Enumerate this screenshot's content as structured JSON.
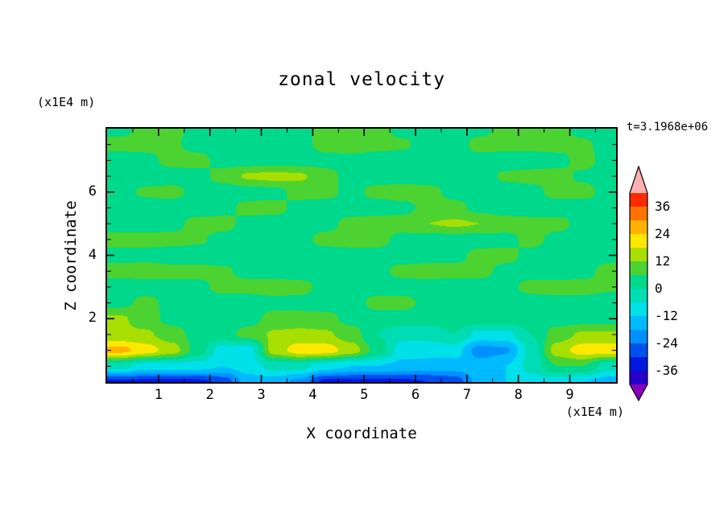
{
  "title": "zonal velocity",
  "annotations": {
    "time": "t=3.1968e+06"
  },
  "x_axis": {
    "label": "X coordinate",
    "units": "(x1E4 m)",
    "range": [
      0,
      9.9
    ],
    "major_ticks": [
      1,
      2,
      3,
      4,
      5,
      6,
      7,
      8,
      9
    ],
    "minor_step": 0.5
  },
  "z_axis": {
    "label": "Z coordinate",
    "units": "(x1E4 m)",
    "range": [
      0,
      8
    ],
    "major_ticks": [
      2,
      4,
      6
    ],
    "minor_step": 0.5
  },
  "colorbar": {
    "labels": [
      "36",
      "24",
      "12",
      "0",
      "-12",
      "-24",
      "-36"
    ]
  },
  "chart_data": {
    "type": "heatmap",
    "title": "zonal velocity",
    "xlabel": "X coordinate (x1E4 m)",
    "ylabel": "Z coordinate (x1E4 m)",
    "time_annotation": "t=3.1968e+06",
    "grid": false,
    "legend_position": "right-colorbar",
    "xlim": [
      0,
      9.9
    ],
    "ylim": [
      0,
      8
    ],
    "contour_levels": [
      -42,
      -36,
      -30,
      -24,
      -18,
      -12,
      -6,
      0,
      6,
      12,
      18,
      24,
      30,
      36,
      42
    ],
    "band_colors": [
      "#8800bb",
      "#2400c8",
      "#0018e0",
      "#0050f0",
      "#0090ff",
      "#00baff",
      "#00e0e8",
      "#00ddb4",
      "#00d98c",
      "#4cd331",
      "#a8de00",
      "#ffe800",
      "#ffb200",
      "#ff7300",
      "#ff2a00",
      "#ffb0b0"
    ],
    "colorbar_tick_values": [
      36,
      24,
      12,
      0,
      -12,
      -24,
      -36
    ],
    "x": [
      0.25,
      0.75,
      1.25,
      1.75,
      2.25,
      2.75,
      3.25,
      3.75,
      4.25,
      4.75,
      5.25,
      5.75,
      6.25,
      6.75,
      7.25,
      7.75,
      8.25,
      8.75,
      9.25,
      9.75
    ],
    "z": [
      8,
      7.5,
      7,
      6.5,
      6,
      5.5,
      5,
      4.5,
      4,
      3.5,
      3,
      2.5,
      2,
      1.5,
      1,
      0.5,
      0
    ],
    "values": [
      [
        4,
        8,
        8,
        4,
        3,
        3,
        3,
        4,
        8,
        8,
        8,
        4,
        3,
        3,
        4,
        8,
        8,
        8,
        4,
        3
      ],
      [
        8,
        8,
        7,
        4,
        3,
        3,
        3,
        4,
        8,
        9,
        8,
        7,
        3,
        3,
        8,
        8,
        8,
        8,
        7,
        4
      ],
      [
        3,
        4,
        8,
        8,
        4,
        3,
        3,
        3,
        4,
        4,
        3,
        3,
        3,
        4,
        4,
        3,
        3,
        4,
        8,
        4
      ],
      [
        3,
        3,
        3,
        4,
        8,
        13,
        14,
        13,
        8,
        4,
        3,
        3,
        3,
        3,
        3,
        7,
        8,
        8,
        5,
        3
      ],
      [
        4,
        7,
        8,
        4,
        3,
        3,
        4,
        8,
        8,
        4,
        8,
        9,
        8,
        4,
        3,
        3,
        4,
        8,
        8,
        4
      ],
      [
        3,
        3,
        3,
        3,
        4,
        8,
        8,
        4,
        3,
        3,
        3,
        4,
        8,
        8,
        4,
        3,
        3,
        3,
        3,
        3
      ],
      [
        3,
        3,
        4,
        8,
        8,
        4,
        3,
        3,
        4,
        8,
        9,
        9,
        12,
        13,
        12,
        9,
        8,
        8,
        4,
        3
      ],
      [
        8,
        8,
        8,
        7,
        4,
        3,
        3,
        4,
        8,
        8,
        8,
        4,
        3,
        3,
        3,
        4,
        8,
        4,
        3,
        3
      ],
      [
        4,
        4,
        3,
        3,
        3,
        3,
        3,
        3,
        3,
        4,
        4,
        3,
        3,
        4,
        8,
        8,
        4,
        3,
        3,
        4
      ],
      [
        8,
        9,
        8,
        8,
        7,
        4,
        3,
        3,
        3,
        3,
        4,
        8,
        9,
        8,
        8,
        4,
        3,
        3,
        4,
        8
      ],
      [
        3,
        3,
        4,
        4,
        8,
        8,
        9,
        8,
        4,
        3,
        3,
        3,
        3,
        3,
        3,
        4,
        8,
        8,
        8,
        7
      ],
      [
        4,
        8,
        4,
        3,
        3,
        3,
        4,
        4,
        3,
        3,
        8,
        8,
        4,
        3,
        3,
        3,
        3,
        4,
        4,
        3
      ],
      [
        13,
        9,
        4,
        3,
        3,
        4,
        8,
        8,
        8,
        4,
        3,
        3,
        3,
        3,
        4,
        4,
        3,
        3,
        3,
        3
      ],
      [
        13,
        13,
        9,
        4,
        4,
        8,
        13,
        14,
        13,
        9,
        0,
        -4,
        -4,
        0,
        -8,
        -8,
        0,
        9,
        13,
        13
      ],
      [
        26,
        21,
        15,
        4,
        -9,
        -9,
        15,
        21,
        21,
        15,
        4,
        -9,
        -9,
        -9,
        -21,
        -19,
        -4,
        15,
        21,
        21
      ],
      [
        -4,
        -9,
        -9,
        -9,
        -12,
        -9,
        -4,
        -4,
        -9,
        -12,
        -12,
        -14,
        -15,
        -15,
        -15,
        -12,
        -4,
        6,
        6,
        -4
      ],
      [
        -32,
        -32,
        -32,
        -32,
        -28,
        -15,
        -15,
        -20,
        -32,
        -32,
        -32,
        -32,
        -30,
        -28,
        -15,
        -12,
        -9,
        -9,
        -12,
        -15
      ]
    ]
  }
}
